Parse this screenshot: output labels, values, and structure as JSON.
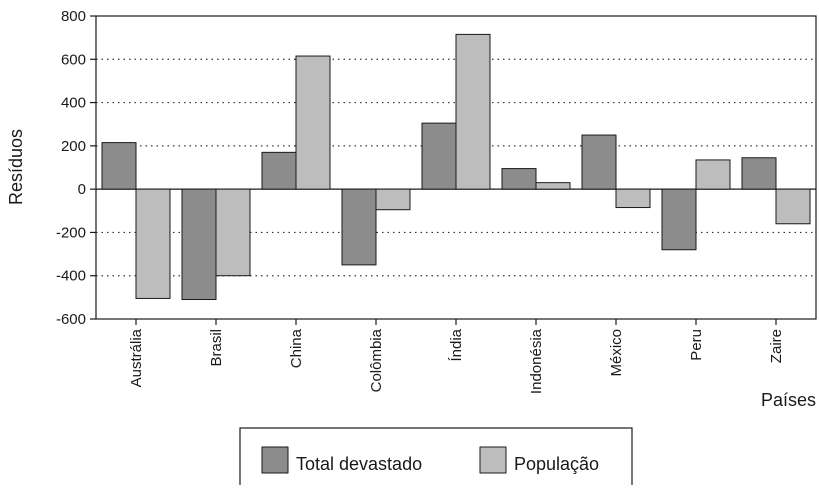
{
  "chart_data": {
    "type": "bar",
    "title": "",
    "xlabel": "Países",
    "ylabel": "Resíduos",
    "ylim": [
      -600,
      800
    ],
    "yticks": [
      800,
      600,
      400,
      200,
      0,
      -200,
      -400,
      -600
    ],
    "grid": "horizontal dotted",
    "legend_position": "bottom",
    "categories": [
      "Austrália",
      "Brasil",
      "China",
      "Colômbia",
      "Índia",
      "Indonésia",
      "México",
      "Peru",
      "Zaire"
    ],
    "series": [
      {
        "name": "Total devastado",
        "color": "#8c8c8c",
        "values": [
          215,
          -510,
          170,
          -350,
          305,
          95,
          250,
          -280,
          145
        ]
      },
      {
        "name": "População",
        "color": "#bdbdbd",
        "values": [
          -505,
          -400,
          615,
          -95,
          715,
          30,
          -85,
          135,
          -160
        ]
      }
    ]
  }
}
